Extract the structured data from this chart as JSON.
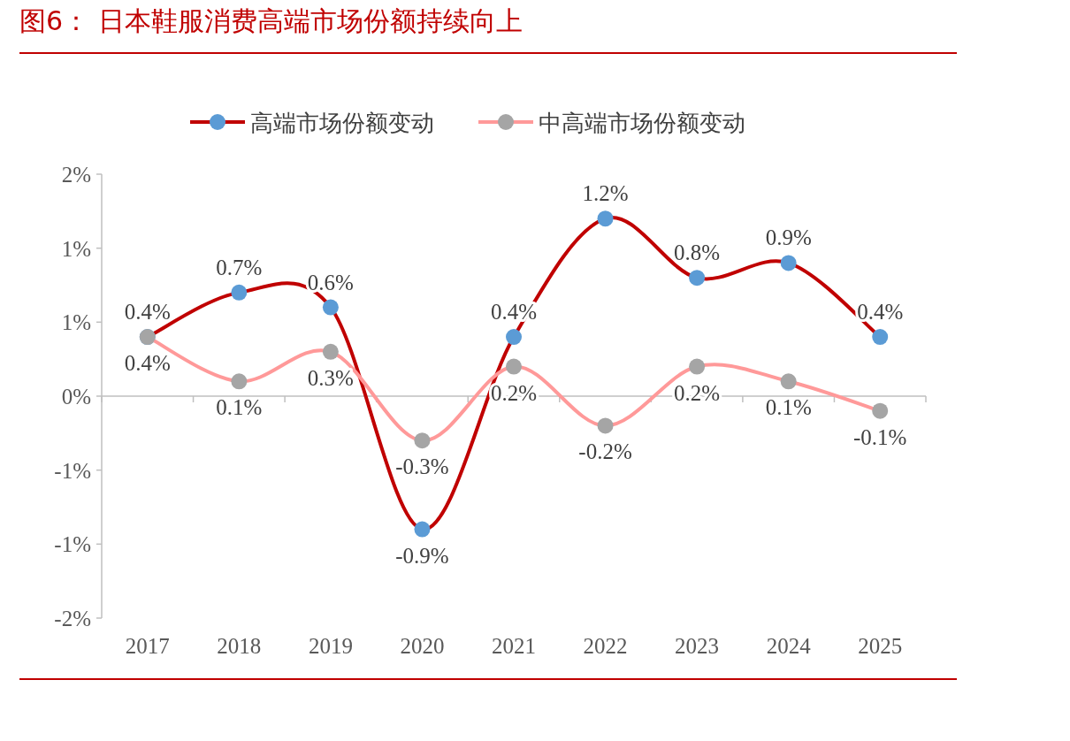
{
  "chart_data": {
    "type": "line",
    "title": "图6：   日本鞋服消费高端市场份额持续向上",
    "categories": [
      "2017",
      "2018",
      "2019",
      "2020",
      "2021",
      "2022",
      "2023",
      "2024",
      "2025"
    ],
    "series": [
      {
        "name": "高端市场份额变动",
        "color": "#c00000",
        "colors": [
          "#5b9bd5",
          "#5b9bd5",
          "#5b9bd5",
          "#5b9bd5",
          "#5b9bd5",
          "#5b9bd5",
          "#5b9bd5",
          "#5b9bd5",
          "#5b9bd5"
        ],
        "values": [
          0.4,
          0.7,
          0.6,
          -0.9,
          0.4,
          1.2,
          0.8,
          0.9,
          0.4
        ],
        "value_labels": [
          "0.4%",
          "0.7%",
          "0.6%",
          "-0.9%",
          "0.4%",
          "1.2%",
          "0.8%",
          "0.9%",
          "0.4%"
        ]
      },
      {
        "name": "中高端市场份额变动",
        "color": "#ff9999",
        "colors": [
          "#a5a5a5",
          "#a5a5a5",
          "#a5a5a5",
          "#a5a5a5",
          "#a5a5a5",
          "#a5a5a5",
          "#a5a5a5",
          "#a5a5a5",
          "#a5a5a5"
        ],
        "values": [
          0.4,
          0.1,
          0.3,
          -0.3,
          0.2,
          -0.2,
          0.2,
          0.1,
          -0.1
        ],
        "value_labels": [
          "0.4%",
          "0.1%",
          "0.3%",
          "-0.3%",
          "0.2%",
          "-0.2%",
          "0.2%",
          "0.1%",
          "-0.1%"
        ]
      }
    ],
    "ylim": [
      -1.5,
      1.5
    ],
    "yticks": [
      {
        "value": 1.5,
        "label": "2%"
      },
      {
        "value": 1.0,
        "label": "1%"
      },
      {
        "value": 0.5,
        "label": "1%"
      },
      {
        "value": 0,
        "label": "0%"
      },
      {
        "value": -0.5,
        "label": "-1%"
      },
      {
        "value": -1.0,
        "label": "-1%"
      },
      {
        "value": -1.5,
        "label": "-2%"
      }
    ],
    "legend": "top",
    "marker": "circle"
  }
}
